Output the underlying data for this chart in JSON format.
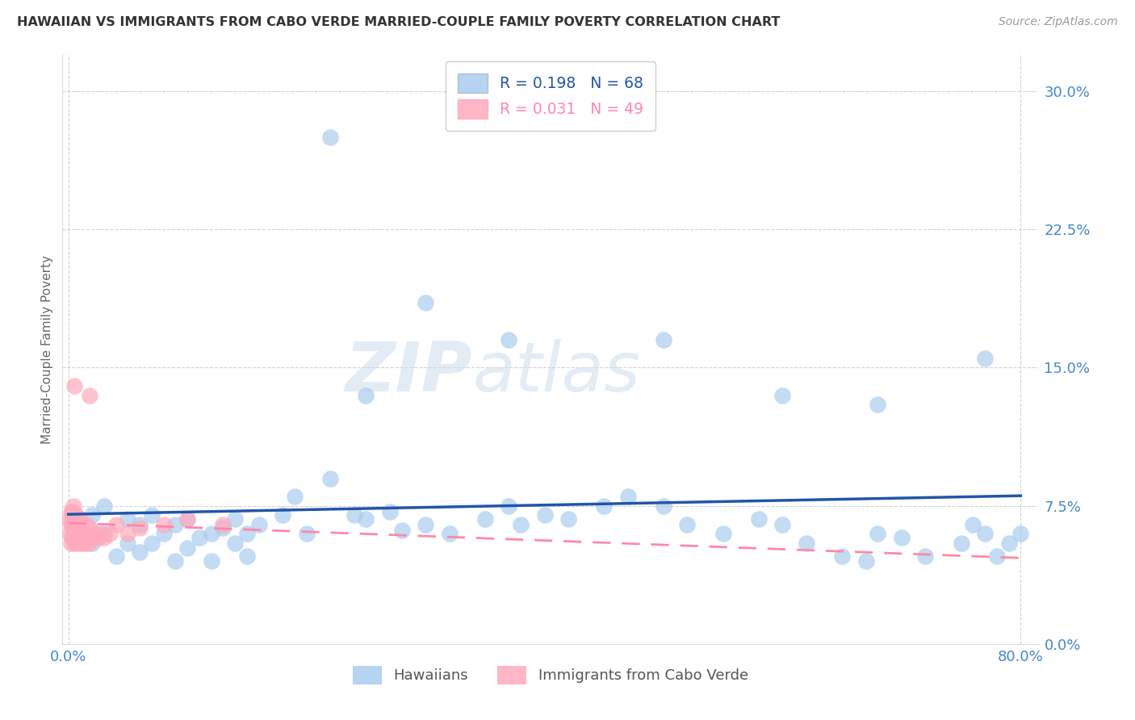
{
  "title": "HAWAIIAN VS IMMIGRANTS FROM CABO VERDE MARRIED-COUPLE FAMILY POVERTY CORRELATION CHART",
  "source": "Source: ZipAtlas.com",
  "ylabel": "Married-Couple Family Poverty",
  "watermark_zip": "ZIP",
  "watermark_atlas": "atlas",
  "legend1_label": "Hawaiians",
  "legend2_label": "Immigrants from Cabo Verde",
  "R1": "0.198",
  "N1": "68",
  "R2": "0.031",
  "N2": "49",
  "blue_scatter_color": "#AACCEE",
  "pink_scatter_color": "#FFAABC",
  "blue_line_color": "#2255AA",
  "pink_line_color": "#FF88AA",
  "axis_tick_color": "#4488CC",
  "grid_color": "#CCCCCC",
  "title_color": "#333333",
  "source_color": "#999999",
  "background_color": "#FFFFFF",
  "ylim_min": 0.0,
  "ylim_max": 0.32,
  "xlim_min": -0.005,
  "xlim_max": 0.815,
  "yticks": [
    0.0,
    0.075,
    0.15,
    0.225,
    0.3
  ],
  "xticks": [
    0.0,
    0.8
  ],
  "hawaiians_x": [
    0.01,
    0.02,
    0.02,
    0.03,
    0.03,
    0.04,
    0.05,
    0.05,
    0.06,
    0.06,
    0.07,
    0.07,
    0.08,
    0.09,
    0.09,
    0.1,
    0.1,
    0.11,
    0.12,
    0.12,
    0.13,
    0.14,
    0.14,
    0.15,
    0.15,
    0.16,
    0.18,
    0.19,
    0.2,
    0.22,
    0.24,
    0.25,
    0.27,
    0.28,
    0.3,
    0.32,
    0.35,
    0.37,
    0.38,
    0.4,
    0.42,
    0.45,
    0.47,
    0.5,
    0.52,
    0.55,
    0.58,
    0.6,
    0.62,
    0.65,
    0.67,
    0.68,
    0.7,
    0.72,
    0.75,
    0.76,
    0.77,
    0.78,
    0.79,
    0.8,
    0.22,
    0.3,
    0.37,
    0.5,
    0.77,
    0.25,
    0.6,
    0.68
  ],
  "hawaiians_y": [
    0.063,
    0.055,
    0.07,
    0.06,
    0.075,
    0.048,
    0.055,
    0.068,
    0.05,
    0.065,
    0.055,
    0.07,
    0.06,
    0.045,
    0.065,
    0.052,
    0.068,
    0.058,
    0.045,
    0.06,
    0.063,
    0.055,
    0.068,
    0.048,
    0.06,
    0.065,
    0.07,
    0.08,
    0.06,
    0.09,
    0.07,
    0.068,
    0.072,
    0.062,
    0.065,
    0.06,
    0.068,
    0.075,
    0.065,
    0.07,
    0.068,
    0.075,
    0.08,
    0.075,
    0.065,
    0.06,
    0.068,
    0.065,
    0.055,
    0.048,
    0.045,
    0.06,
    0.058,
    0.048,
    0.055,
    0.065,
    0.06,
    0.048,
    0.055,
    0.06,
    0.275,
    0.185,
    0.165,
    0.165,
    0.155,
    0.135,
    0.135,
    0.13
  ],
  "cabo_x": [
    0.001,
    0.001,
    0.002,
    0.002,
    0.002,
    0.003,
    0.003,
    0.003,
    0.004,
    0.004,
    0.004,
    0.005,
    0.005,
    0.005,
    0.006,
    0.006,
    0.006,
    0.007,
    0.007,
    0.008,
    0.008,
    0.009,
    0.009,
    0.01,
    0.01,
    0.011,
    0.011,
    0.012,
    0.013,
    0.014,
    0.015,
    0.015,
    0.016,
    0.017,
    0.018,
    0.02,
    0.022,
    0.025,
    0.028,
    0.03,
    0.035,
    0.04,
    0.05,
    0.06,
    0.08,
    0.1,
    0.13,
    0.005,
    0.018
  ],
  "cabo_y": [
    0.06,
    0.068,
    0.055,
    0.065,
    0.072,
    0.058,
    0.065,
    0.072,
    0.06,
    0.068,
    0.075,
    0.055,
    0.063,
    0.07,
    0.058,
    0.065,
    0.07,
    0.06,
    0.068,
    0.055,
    0.063,
    0.058,
    0.065,
    0.06,
    0.068,
    0.055,
    0.063,
    0.058,
    0.06,
    0.055,
    0.058,
    0.065,
    0.06,
    0.055,
    0.063,
    0.058,
    0.06,
    0.058,
    0.06,
    0.058,
    0.06,
    0.065,
    0.06,
    0.063,
    0.065,
    0.068,
    0.065,
    0.14,
    0.135
  ]
}
